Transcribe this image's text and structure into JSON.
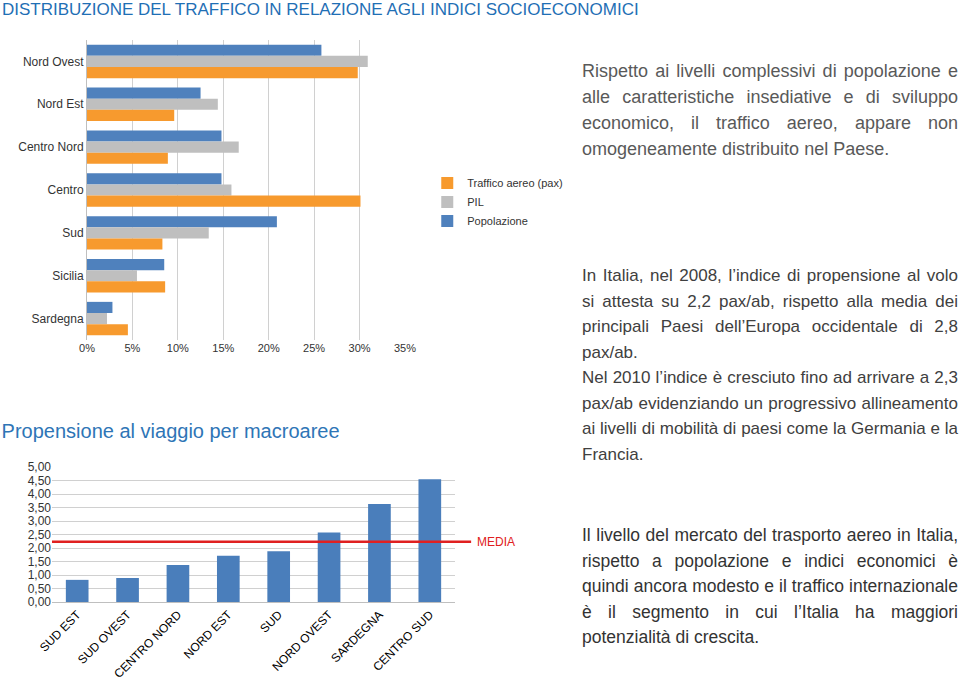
{
  "title": "DISTRIBUZIONE DEL TRAFFICO IN RELAZIONE AGLI INDICI SOCIOECONOMICI",
  "text_blocks": [
    [
      "Rispetto ai livelli complessivi di popolazione e alle caratteristiche insediative e di sviluppo economico, il traffico aereo, appare non omogeneamente distribuito nel Paese."
    ],
    [
      "In Italia, nel 2008, l’indice di propensione al volo si attesta su 2,2 pax/ab, rispetto alla media dei principali Paesi dell’Europa occidentale di 2,8 pax/ab.",
      "Nel 2010 l’indice è cresciuto fino ad arrivare a 2,3 pax/ab evidenziando un progressivo allineamento ai livelli di mobilità di paesi come la Germania e la Francia."
    ],
    [
      "Il livello del mercato del trasporto aereo in Italia, rispetto a popolazione e indici economici è quindi ancora modesto e il traffico internazionale è il segmento in cui l’Italia ha maggiori potenzialità di crescita."
    ]
  ],
  "chart_data": [
    {
      "type": "bar",
      "orientation": "horizontal",
      "grid": true,
      "legend": "right",
      "categories": [
        "Nord Ovest",
        "Nord Est",
        "Centro Nord",
        "Centro",
        "Sud",
        "Sicilia",
        "Sardegna"
      ],
      "series": [
        {
          "name": "Traffico aereo (pax)",
          "color": "#f79a2e",
          "values": [
            29.8,
            9.6,
            8.9,
            30.1,
            8.3,
            8.6,
            4.5
          ]
        },
        {
          "name": "PIL",
          "color": "#bfbfbf",
          "values": [
            30.9,
            14.4,
            16.7,
            15.9,
            13.4,
            5.5,
            2.2
          ]
        },
        {
          "name": "Popolazione",
          "color": "#4f81bd",
          "values": [
            25.8,
            12.5,
            14.8,
            14.8,
            20.9,
            8.5,
            2.8
          ]
        }
      ],
      "xlim": [
        0,
        35
      ],
      "xticks": [
        {
          "value": 0,
          "label": "0%"
        },
        {
          "value": 5,
          "label": "5%"
        },
        {
          "value": 10,
          "label": "10%"
        },
        {
          "value": 15,
          "label": "15%"
        },
        {
          "value": 20,
          "label": "20%"
        },
        {
          "value": 25,
          "label": "25%"
        },
        {
          "value": 30,
          "label": "30%"
        },
        {
          "value": 35,
          "label": "35%"
        }
      ]
    },
    {
      "type": "bar",
      "title": "Propensione al viaggio per macroaree",
      "grid": true,
      "color": "#4a7ebb",
      "categories": [
        "SUD EST",
        "SUD OVEST",
        "CENTRO NORD",
        "NORD EST",
        "SUD",
        "NORD OVEST",
        "SARDEGNA",
        "CENTRO SUD"
      ],
      "values": [
        0.82,
        0.89,
        1.37,
        1.71,
        1.88,
        2.57,
        3.63,
        4.55
      ],
      "reference_line": {
        "value": 2.23,
        "label": "MEDIA",
        "color": "#e02020"
      },
      "ylim": [
        0,
        5
      ],
      "yticks": [
        {
          "value": 0,
          "label": "0,00"
        },
        {
          "value": 0.5,
          "label": "0,50"
        },
        {
          "value": 1,
          "label": "1,00"
        },
        {
          "value": 1.5,
          "label": "1,50"
        },
        {
          "value": 2,
          "label": "2,00"
        },
        {
          "value": 2.5,
          "label": "2,50"
        },
        {
          "value": 3,
          "label": "3,00"
        },
        {
          "value": 3.5,
          "label": "3,50"
        },
        {
          "value": 4,
          "label": "4,00"
        },
        {
          "value": 4.5,
          "label": "4,50"
        },
        {
          "value": 5,
          "label": "5,00"
        }
      ]
    }
  ]
}
